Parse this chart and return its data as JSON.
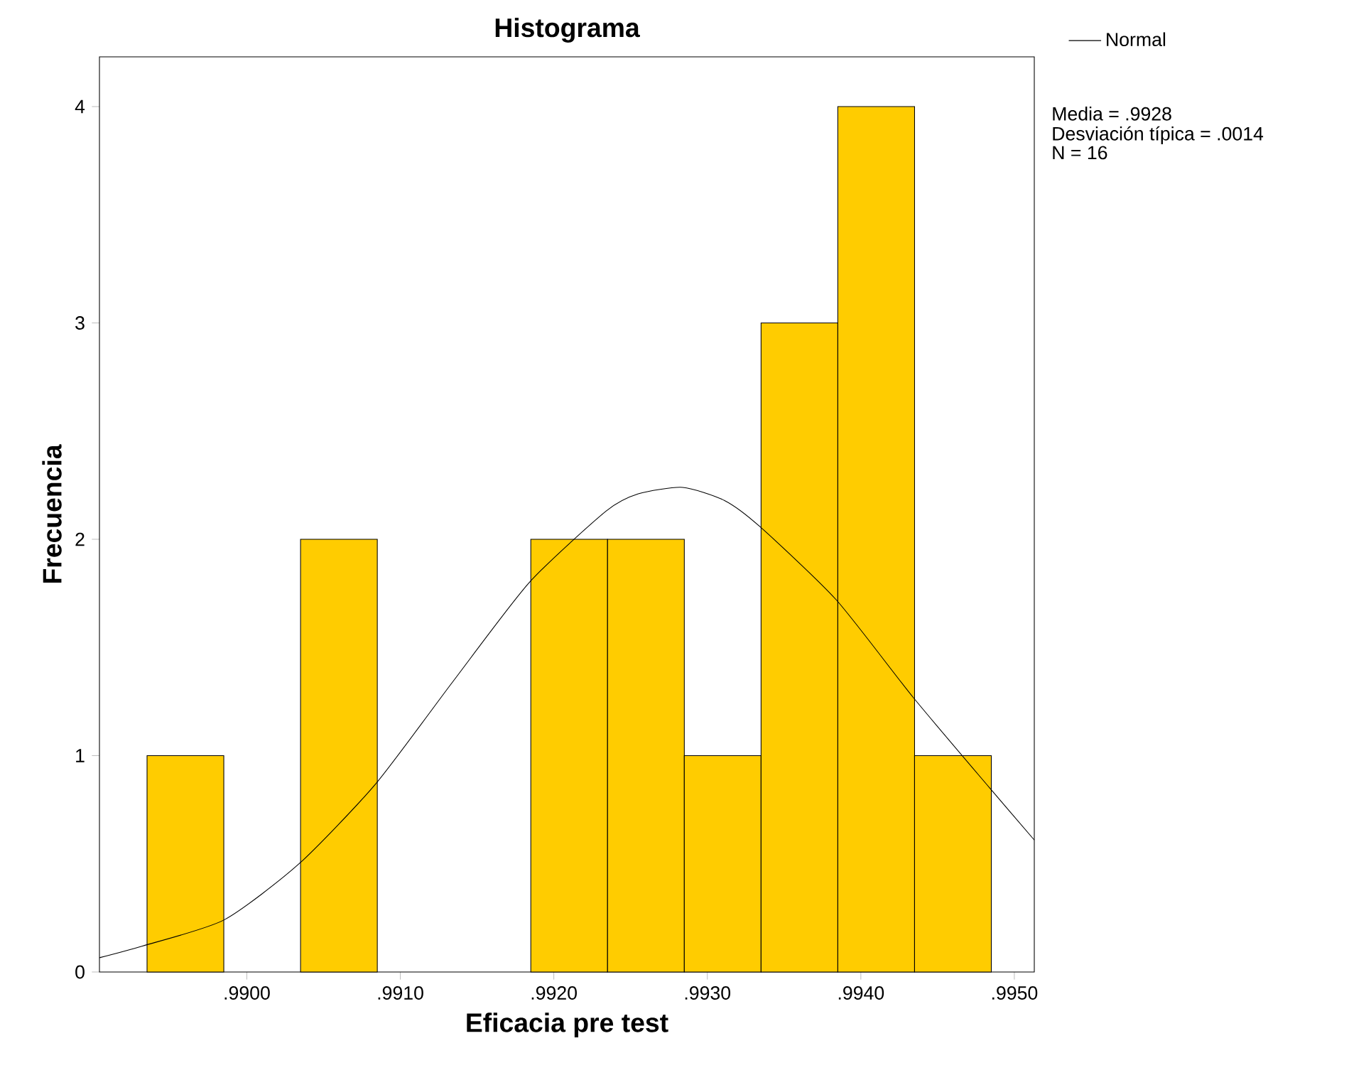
{
  "chart_data": {
    "type": "histogram",
    "title": "Histograma",
    "xlabel": "Eficacia pre test",
    "ylabel": "Frecuencia",
    "xlim": [
      0.98904,
      0.99513
    ],
    "ylim": [
      0,
      4.23
    ],
    "xticks": [
      {
        "value": 0.99,
        "label": ".9900"
      },
      {
        "value": 0.991,
        "label": ".9910"
      },
      {
        "value": 0.992,
        "label": ".9920"
      },
      {
        "value": 0.993,
        "label": ".9930"
      },
      {
        "value": 0.994,
        "label": ".9940"
      },
      {
        "value": 0.995,
        "label": ".9950"
      }
    ],
    "yticks": [
      0,
      1,
      2,
      3,
      4
    ],
    "series": [
      {
        "color": "#ffcc00",
        "bins": [
          0.98935,
          0.98985,
          0.99035,
          0.99085,
          0.99135,
          0.99185,
          0.99235,
          0.99285,
          0.99335,
          0.99385,
          0.99435,
          0.99485
        ],
        "values": [
          1,
          0,
          2,
          0,
          0,
          2,
          2,
          1,
          3,
          4,
          1
        ]
      },
      {
        "type": "line",
        "name": "Normal",
        "color": "#000000",
        "x": [
          0.98904,
          0.98932,
          0.98985,
          0.99034,
          0.99084,
          0.99134,
          0.99184,
          0.99234,
          0.99255,
          0.99284,
          0.99311,
          0.99334,
          0.99384,
          0.99434,
          0.99484,
          0.99513
        ],
        "values": [
          0.066,
          0.12,
          0.24,
          0.5,
          0.87,
          1.34,
          1.8,
          2.13,
          2.21,
          2.24,
          2.18,
          2.06,
          1.72,
          1.27,
          0.85,
          0.61
        ]
      }
    ],
    "legend": "top right",
    "grid": false,
    "annotations": [
      "Media = .9928",
      "Desviación típica = .0014",
      "N = 16"
    ]
  }
}
